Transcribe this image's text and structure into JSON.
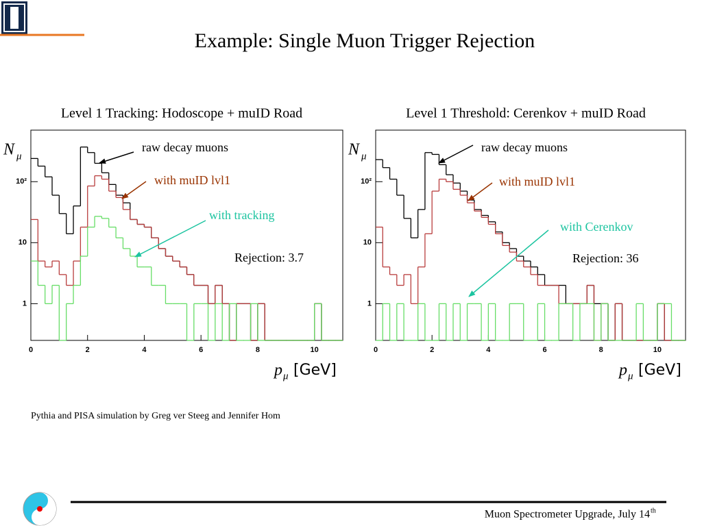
{
  "slide": {
    "title": "Example: Single Muon Trigger Rejection",
    "credit": "Pythia and PISA simulation by Greg ver Steeg and Jennifer Hom",
    "footer": "Muon Spectrometer Upgrade, July 14",
    "footer_sup": "th"
  },
  "chart_data": [
    {
      "type": "histogram",
      "title": "Level 1 Tracking: Hodoscope + muID Road",
      "y_label": "N",
      "y_label_sub": "μ",
      "x_label": "p",
      "x_label_sub": "μ",
      "x_label_unit": "[GeV]",
      "yscale": "log",
      "xlim": [
        0,
        11
      ],
      "ylim": [
        0.25,
        700
      ],
      "xticks": [
        0,
        2,
        4,
        6,
        8,
        10
      ],
      "yticks": [
        1,
        10,
        {
          "value": 100,
          "label": "10²"
        }
      ],
      "bins": [
        0,
        0.25,
        0.5,
        0.75,
        1,
        1.25,
        1.5,
        1.75,
        2,
        2.25,
        2.5,
        2.75,
        3,
        3.25,
        3.5,
        3.75,
        4,
        4.25,
        4.5,
        4.75,
        5,
        5.25,
        5.5,
        5.75,
        6,
        6.25,
        6.5,
        6.75,
        7,
        7.25,
        7.5,
        7.75,
        8,
        8.25,
        8.5,
        8.75,
        9,
        9.25,
        9.5,
        9.75,
        10,
        10.25,
        10.5,
        10.75,
        11
      ],
      "series": [
        {
          "name": "raw decay muons",
          "color": "#000000",
          "values": [
            240,
            180,
            120,
            60,
            30,
            14,
            40,
            370,
            300,
            200,
            140,
            90,
            60,
            45,
            24,
            20,
            18,
            12,
            8,
            6,
            5,
            4,
            3,
            2,
            2,
            1,
            2,
            1,
            0,
            1,
            1,
            0,
            1,
            0,
            0,
            0,
            0,
            0,
            0,
            0,
            1,
            0,
            0,
            0
          ]
        },
        {
          "name": "with muID lvl1",
          "color": "#b83c3c",
          "values": [
            24,
            5,
            4,
            5,
            3,
            2,
            5,
            18,
            85,
            125,
            110,
            70,
            55,
            35,
            24,
            20,
            18,
            12,
            8,
            6,
            5,
            4,
            3,
            2,
            2,
            1,
            2,
            1,
            0,
            1,
            1,
            0,
            1,
            0,
            0,
            0,
            0,
            0,
            0,
            0,
            1,
            0,
            0,
            0
          ]
        },
        {
          "name": "with tracking",
          "color": "#66dd66",
          "values": [
            5,
            2,
            1,
            2,
            0,
            1,
            2,
            6,
            18,
            27,
            25,
            18,
            12,
            8,
            6,
            4,
            4,
            2,
            2,
            1,
            1,
            1,
            0,
            1,
            1,
            0,
            1,
            0,
            1,
            0,
            0,
            1,
            0,
            0,
            0,
            0,
            0,
            0,
            0,
            0,
            1,
            0,
            0,
            0
          ]
        }
      ],
      "annotations": [
        {
          "text": "raw decay muons",
          "color": "#000000"
        },
        {
          "text": "with muID lvl1",
          "color": "#993300"
        },
        {
          "text": "with tracking",
          "color": "#1cc4a0"
        },
        {
          "text": "Rejection: 3.7",
          "color": "#000000"
        }
      ]
    },
    {
      "type": "histogram",
      "title": "Level 1 Threshold: Cerenkov + muID Road",
      "y_label": "N",
      "y_label_sub": "μ",
      "x_label": "p",
      "x_label_sub": "μ",
      "x_label_unit": "[GeV]",
      "yscale": "log",
      "xlim": [
        0,
        11
      ],
      "ylim": [
        0.25,
        700
      ],
      "xticks": [
        0,
        2,
        4,
        6,
        8,
        10
      ],
      "yticks": [
        1,
        10,
        {
          "value": 100,
          "label": "10²"
        }
      ],
      "bins": [
        0,
        0.25,
        0.5,
        0.75,
        1,
        1.25,
        1.5,
        1.75,
        2,
        2.25,
        2.5,
        2.75,
        3,
        3.25,
        3.5,
        3.75,
        4,
        4.25,
        4.5,
        4.75,
        5,
        5.25,
        5.5,
        5.75,
        6,
        6.25,
        6.5,
        6.75,
        7,
        7.25,
        7.5,
        7.75,
        8,
        8.25,
        8.5,
        8.75,
        9,
        9.25,
        9.5,
        9.75,
        10,
        10.25,
        10.5,
        10.75,
        11
      ],
      "series": [
        {
          "name": "raw decay muons",
          "color": "#000000",
          "values": [
            230,
            170,
            110,
            60,
            25,
            12,
            35,
            300,
            280,
            190,
            130,
            95,
            70,
            50,
            35,
            28,
            22,
            15,
            10,
            8,
            6,
            5,
            4,
            3,
            2,
            2,
            2,
            1,
            1,
            1,
            2,
            1,
            1,
            0,
            1,
            0,
            0,
            0,
            0,
            0,
            1,
            0,
            0,
            0
          ]
        },
        {
          "name": "with muID lvl1",
          "color": "#b83c3c",
          "values": [
            18,
            4,
            3,
            2,
            3,
            1,
            4,
            14,
            70,
            110,
            100,
            75,
            60,
            45,
            33,
            26,
            20,
            14,
            9,
            7,
            5,
            4,
            3,
            2,
            2,
            2,
            1,
            1,
            1,
            1,
            2,
            0,
            1,
            0,
            1,
            0,
            0,
            0,
            0,
            0,
            1,
            0,
            0,
            0
          ]
        },
        {
          "name": "with Cerenkov",
          "color": "#66dd66",
          "values": [
            0,
            1,
            0,
            1,
            0,
            0,
            1,
            0,
            0,
            1,
            0,
            1,
            0,
            1,
            1,
            0,
            1,
            0,
            0,
            1,
            1,
            0,
            0,
            1,
            0,
            0,
            1,
            1,
            0,
            1,
            1,
            0,
            1,
            0,
            0,
            0,
            0,
            1,
            0,
            0,
            1,
            1,
            0,
            0
          ]
        }
      ],
      "annotations": [
        {
          "text": "raw decay muons",
          "color": "#000000"
        },
        {
          "text": "with muID lvl1",
          "color": "#993300"
        },
        {
          "text": "with Cerenkov",
          "color": "#1cc4a0"
        },
        {
          "text": "Rejection: 36",
          "color": "#000000"
        }
      ]
    }
  ]
}
